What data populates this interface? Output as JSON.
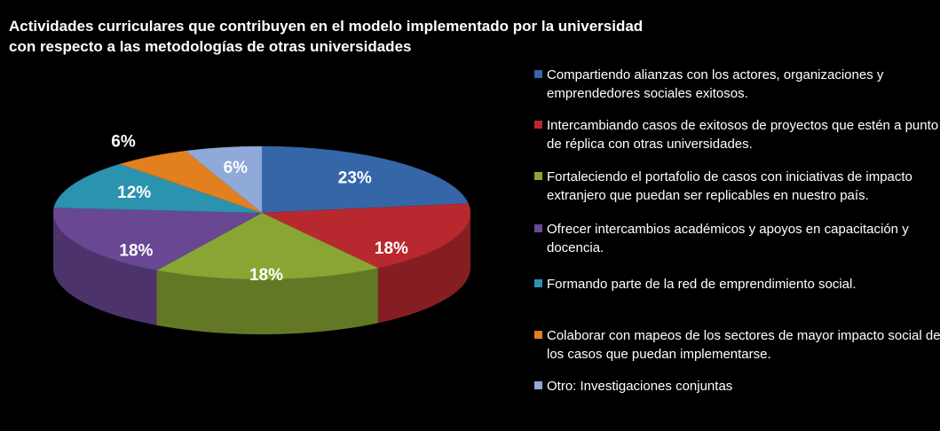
{
  "chart_data": {
    "type": "pie",
    "title": "Actividades curriculares que contribuyen en el modelo implementado por la universidad con respecto a las metodologías de otras universidades",
    "categories": [
      "Compartiendo alianzas con los actores, organizaciones y emprendedores sociales exitosos.",
      "Intercambiando casos de exitosos de proyectos que estén a punto de réplica con otras universidades.",
      "Fortaleciendo el portafolio de casos con iniciativas de impacto extranjero que puedan ser replicables en nuestro país.",
      "Ofrecer intercambios académicos y apoyos en capacitación y docencia.",
      "Formando parte de la red de emprendimiento social.",
      "Colaborar con mapeos de los sectores de mayor impacto social de los casos que puedan implementarse.",
      "Otro:   Investigaciones conjuntas"
    ],
    "values": [
      23,
      18,
      18,
      18,
      12,
      6,
      6
    ],
    "value_labels": [
      "23%",
      "18%",
      "18%",
      "18%",
      "12%",
      "6%",
      "6%"
    ],
    "colors": [
      "#3566a8",
      "#b8292f",
      "#89a634",
      "#6a4793",
      "#2b93ae",
      "#e27f1e",
      "#8fa9d8"
    ],
    "legend": "right"
  }
}
